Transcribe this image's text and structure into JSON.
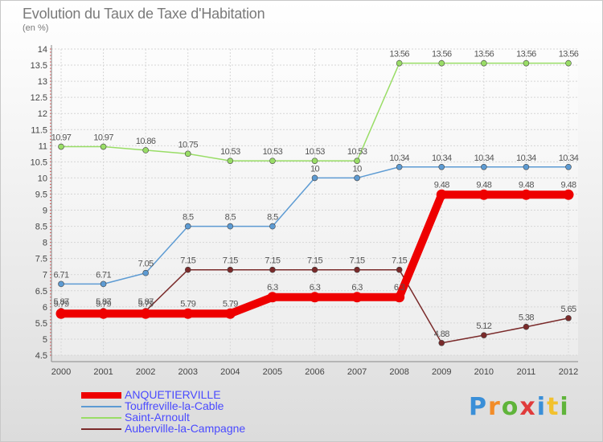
{
  "header": {
    "title": "Evolution du Taux de Taxe d'Habitation",
    "subtitle": "(en %)"
  },
  "logo": {
    "text": "Proxiti",
    "colors": [
      "#3a8fd8",
      "#f28c28",
      "#5fb43a",
      "#e03b3b",
      "#3a8fd8",
      "#f2c12e",
      "#5fb43a"
    ]
  },
  "chart_data": {
    "type": "line",
    "categories": [
      "2000",
      "2001",
      "2002",
      "2003",
      "2004",
      "2005",
      "2006",
      "2007",
      "2008",
      "2009",
      "2010",
      "2011",
      "2012"
    ],
    "ylim": [
      4.5,
      14
    ],
    "yticks": [
      "4.5",
      "5",
      "5.5",
      "6",
      "6.5",
      "7",
      "7.5",
      "8",
      "8.5",
      "9",
      "9.5",
      "10",
      "10.5",
      "11",
      "11.5",
      "12",
      "12.5",
      "13",
      "13.5",
      "14"
    ],
    "grid": true,
    "legend_position": "bottom-left",
    "series": [
      {
        "name": "Saint-Arnoult",
        "color": "#99dd66",
        "values": [
          10.97,
          10.97,
          10.86,
          10.75,
          10.53,
          10.53,
          10.53,
          10.53,
          13.56,
          13.56,
          13.56,
          13.56,
          13.56
        ],
        "labels": [
          "10.97",
          "10.97",
          "10.86",
          "10.75",
          "10.53",
          "10.53",
          "10.53",
          "10.53",
          "13.56",
          "13.56",
          "13.56",
          "13.56",
          "13.56"
        ]
      },
      {
        "name": "Touffreville-la-Cable",
        "color": "#5d9bd3",
        "values": [
          6.71,
          6.71,
          7.05,
          8.5,
          8.5,
          8.5,
          10,
          10,
          10.34,
          10.34,
          10.34,
          10.34,
          10.34
        ],
        "labels": [
          "6.71",
          "6.71",
          "7.05",
          "8.5",
          "8.5",
          "8.5",
          "10",
          "10",
          "10.34",
          "10.34",
          "10.34",
          "10.34",
          "10.34"
        ]
      },
      {
        "name": "Auberville-la-Campagne",
        "color": "#7a2a2a",
        "values": [
          5.87,
          5.87,
          5.87,
          7.15,
          7.15,
          7.15,
          7.15,
          7.15,
          7.15,
          4.88,
          5.12,
          5.38,
          5.65
        ],
        "labels": [
          "5.87",
          "5.87",
          "5.87",
          "7.15",
          "7.15",
          "7.15",
          "7.15",
          "7.15",
          "7.15",
          "4.88",
          "5.12",
          "5.38",
          "5.65"
        ]
      },
      {
        "name": "ANQUETIERVILLE",
        "color": "#ee0000",
        "values": [
          5.79,
          5.79,
          5.79,
          5.79,
          5.79,
          6.3,
          6.3,
          6.3,
          6.3,
          9.48,
          9.48,
          9.48,
          9.48
        ],
        "labels": [
          "5.79",
          "5.79",
          "5.79",
          "5.79",
          "5.79",
          "6.3",
          "6.3",
          "6.3",
          "6.3",
          "9.48",
          "9.48",
          "9.48",
          "9.48"
        ]
      }
    ],
    "legend_order": [
      "ANQUETIERVILLE",
      "Touffreville-la-Cable",
      "Saint-Arnoult",
      "Auberville-la-Campagne"
    ]
  }
}
